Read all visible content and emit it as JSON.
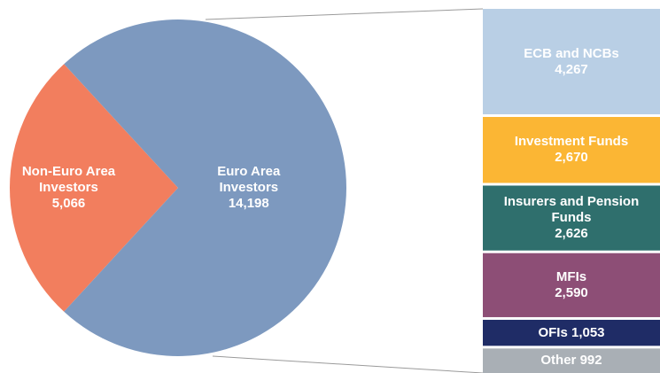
{
  "chart_data": [
    {
      "type": "pie",
      "categories": [
        "Non-Euro Area Investors",
        "Euro Area Investors"
      ],
      "values": [
        5066,
        14198
      ],
      "value_labels": [
        "5,066",
        "14,198"
      ],
      "colors": [
        "#f27e5e",
        "#7d99bf"
      ]
    },
    {
      "type": "bar",
      "categories": [
        "ECB and NCBs",
        "Investment Funds",
        "Insurers and Pension Funds",
        "MFIs",
        "OFIs",
        "Other"
      ],
      "values": [
        4267,
        2670,
        2626,
        2590,
        1053,
        992
      ],
      "value_labels": [
        "4,267",
        "2,670",
        "2,626",
        "2,590",
        "1,053",
        "992"
      ],
      "colors": [
        "#b9cfe5",
        "#fbb634",
        "#2f6f6d",
        "#8d4e76",
        "#1f2c66",
        "#a9afb5"
      ]
    }
  ]
}
